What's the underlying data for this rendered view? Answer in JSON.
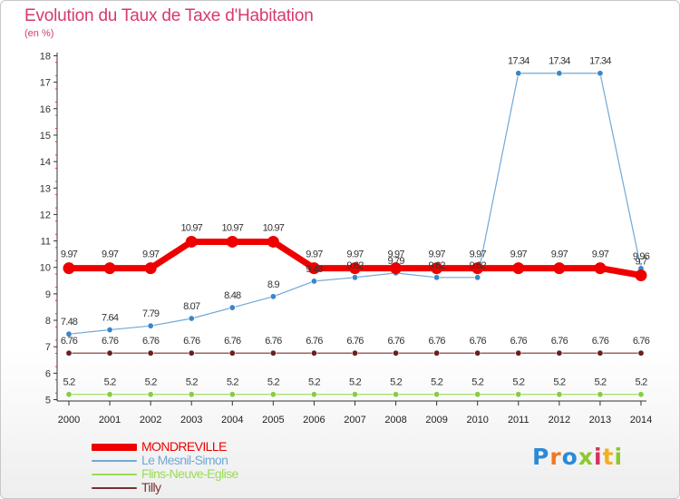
{
  "header": {
    "title": "Evolution du Taux de Taxe d'Habitation",
    "subtitle": "(en %)"
  },
  "chart_data": {
    "type": "line",
    "title": "Evolution du Taux de Taxe d'Habitation",
    "ylabel": "(en %)",
    "xlabel": "",
    "x": [
      "2000",
      "2001",
      "2002",
      "2003",
      "2004",
      "2005",
      "2006",
      "2007",
      "2008",
      "2009",
      "2010",
      "2011",
      "2012",
      "2013",
      "2014"
    ],
    "yticks": [
      "5",
      "6",
      "7",
      "8",
      "9",
      "10",
      "11",
      "12",
      "13",
      "14",
      "15",
      "16",
      "17",
      "18"
    ],
    "ylim": [
      5,
      18
    ],
    "grid": false,
    "legend_position": "bottom-left",
    "series": [
      {
        "name": "MONDREVILLE",
        "color": "#ee0000",
        "values": [
          9.97,
          9.97,
          9.97,
          10.97,
          10.97,
          10.97,
          9.97,
          9.97,
          9.97,
          9.97,
          9.97,
          9.97,
          9.97,
          9.97,
          9.7
        ],
        "labels": [
          "9.97",
          "9.97",
          "9.97",
          "10.97",
          "10.97",
          "10.97",
          "9.97",
          "9.97",
          "9.97",
          "9.97",
          "9.97",
          "9.97",
          "9.97",
          "9.97",
          "9.7"
        ]
      },
      {
        "name": "Le Mesnil-Simon",
        "color": "#6fa8d8",
        "values": [
          7.48,
          7.64,
          7.79,
          8.07,
          8.48,
          8.9,
          9.48,
          9.62,
          9.79,
          9.62,
          9.62,
          17.34,
          17.34,
          17.34,
          9.96
        ],
        "labels": [
          "7.48",
          "7.64",
          "7.79",
          "8.07",
          "8.48",
          "8.9",
          "9.48",
          "9.62",
          "9.79",
          "9.62",
          "9.62",
          "17.34",
          "17.34",
          "17.34",
          "9.96"
        ]
      },
      {
        "name": "Flins-Neuve-Eglise",
        "color": "#99dd55",
        "values": [
          5.2,
          5.2,
          5.2,
          5.2,
          5.2,
          5.2,
          5.2,
          5.2,
          5.2,
          5.2,
          5.2,
          5.2,
          5.2,
          5.2,
          5.2
        ],
        "labels": [
          "5.2",
          "5.2",
          "5.2",
          "5.2",
          "5.2",
          "5.2",
          "5.2",
          "5.2",
          "5.2",
          "5.2",
          "5.2",
          "5.2",
          "5.2",
          "5.2",
          "5.2"
        ]
      },
      {
        "name": "Tilly",
        "color": "#7a3030",
        "values": [
          6.76,
          6.76,
          6.76,
          6.76,
          6.76,
          6.76,
          6.76,
          6.76,
          6.76,
          6.76,
          6.76,
          6.76,
          6.76,
          6.76,
          6.76
        ],
        "labels": [
          "6.76",
          "6.76",
          "6.76",
          "6.76",
          "6.76",
          "6.76",
          "6.76",
          "6.76",
          "6.76",
          "6.76",
          "6.76",
          "6.76",
          "6.76",
          "6.76",
          "6.76"
        ]
      }
    ]
  },
  "logo": {
    "text": "Proxiti",
    "colors": [
      "#2a8ad8",
      "#f07820",
      "#2a8ad8",
      "#8cc830",
      "#d83060",
      "#f0b020",
      "#8cc830"
    ]
  }
}
